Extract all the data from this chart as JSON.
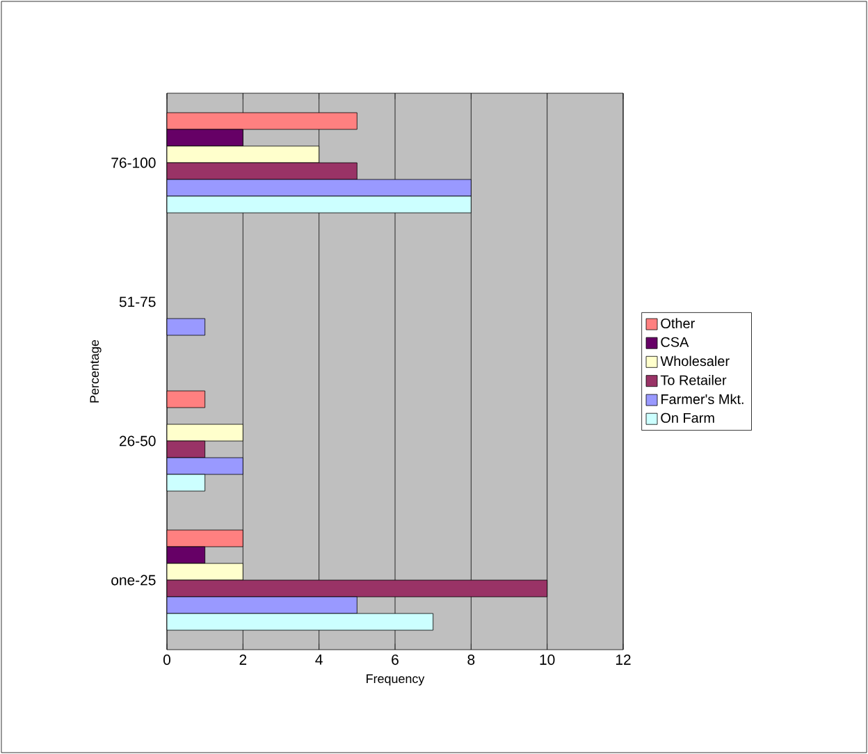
{
  "chart_data": {
    "type": "bar",
    "orientation": "horizontal",
    "xlabel": "Frequency",
    "ylabel": "Percentage",
    "categories": [
      "76-100",
      "51-75",
      "26-50",
      "one-25"
    ],
    "series": [
      {
        "name": "Other",
        "color": "#ff8080",
        "values": [
          5,
          null,
          1,
          2
        ]
      },
      {
        "name": "CSA",
        "color": "#660066",
        "values": [
          2,
          null,
          null,
          1
        ]
      },
      {
        "name": "Wholesaler",
        "color": "#ffffcc",
        "values": [
          4,
          null,
          2,
          2
        ]
      },
      {
        "name": "To Retailer",
        "color": "#993366",
        "values": [
          5,
          null,
          1,
          10
        ]
      },
      {
        "name": "Farmer's Mkt.",
        "color": "#9999ff",
        "values": [
          8,
          1,
          2,
          5
        ]
      },
      {
        "name": "On Farm",
        "color": "#ccffff",
        "values": [
          8,
          null,
          1,
          7
        ]
      }
    ],
    "xlim": [
      0,
      12
    ],
    "xticks": [
      0,
      2,
      4,
      6,
      8,
      10,
      12
    ],
    "grid": "x",
    "legend": "right"
  }
}
